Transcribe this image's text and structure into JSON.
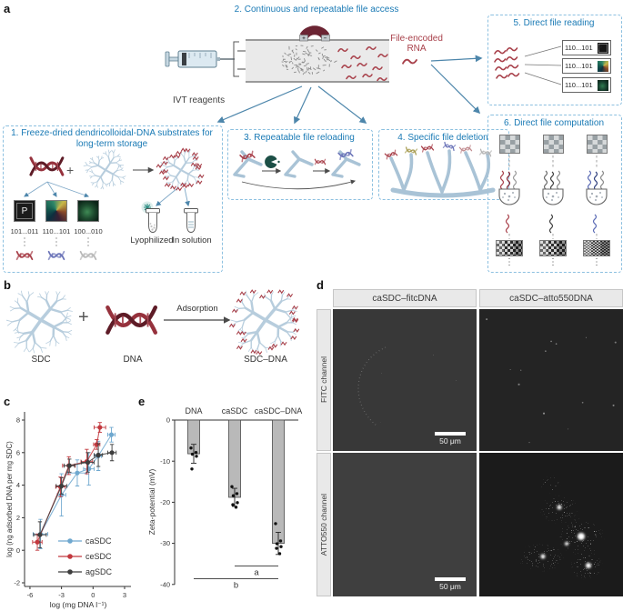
{
  "panels": {
    "a": {
      "label": "a",
      "flow_title": "2. Continuous and repeatable file access",
      "file_encoded_rna": "File-encoded RNA",
      "ivt_reagents": "IVT reagents",
      "box1": {
        "title": "1. Freeze-dried dendricolloidal-DNA substrates for long-term storage",
        "plus": "+",
        "p_label": "P",
        "file_codes": [
          "101...011",
          "110...101",
          "100...010"
        ],
        "lyophilized": "Lyophilized",
        "in_solution": "In solution"
      },
      "box3": {
        "title": "3. Repeatable file reloading"
      },
      "box4": {
        "title": "4. Specific file deletion"
      },
      "box5": {
        "title": "5. Direct file reading",
        "entries": [
          "110...101",
          "110...101",
          "110...101"
        ]
      },
      "box6": {
        "title": "6. Direct file computation",
        "ellipsis": "⋮"
      }
    },
    "b": {
      "label": "b",
      "sdc": "SDC",
      "plus": "+",
      "dna": "DNA",
      "arrow_label": "Adsorption",
      "sdc_dna": "SDC–DNA"
    },
    "c": {
      "label": "c"
    },
    "d": {
      "label": "d",
      "col_headers": [
        "caSDC–fitcDNA",
        "caSDC–atto550DNA"
      ],
      "row_headers": [
        "FITC channel",
        "ATTO550 channel"
      ],
      "scale_bar": "50 μm"
    },
    "e": {
      "label": "e"
    }
  },
  "colors": {
    "accent_blue": "#1a7ab5",
    "dashed_border": "#8cc0e0",
    "arrow_blue": "#4d86ab",
    "rna_red": "#a8404a",
    "dendrimer_blue": "#b7cddd",
    "magnet_maroon": "#6b2433",
    "bar_gray": "#b9b9b9"
  },
  "chart_data": [
    {
      "panel": "c",
      "type": "scatter",
      "title": "",
      "xlabel": "log (mg DNA l⁻¹)",
      "ylabel": "log (ng adsorbed DNA per mg SDC)",
      "xlim": [
        -6.8,
        3.5
      ],
      "ylim": [
        -2.5,
        8.5
      ],
      "xticks": [
        -6,
        -3,
        0,
        3
      ],
      "yticks": [
        -2,
        0,
        2,
        4,
        6,
        8
      ],
      "grid": false,
      "legend_position": "lower-right",
      "series": [
        {
          "name": "caSDC",
          "color": "#6fa8cf",
          "points": [
            {
              "x": -5.0,
              "y": 1.0,
              "xe": 0.7,
              "ye": 0.9
            },
            {
              "x": -3.0,
              "y": 3.4,
              "xe": 0.4,
              "ye": 1.3
            },
            {
              "x": -1.5,
              "y": 4.75,
              "xe": 0.9,
              "ye": 0.8
            },
            {
              "x": -0.4,
              "y": 5.0,
              "xe": 0.5,
              "ye": 1.0
            },
            {
              "x": 0.5,
              "y": 5.8,
              "xe": 0.3,
              "ye": 0.9
            },
            {
              "x": 1.75,
              "y": 7.1,
              "xe": 0.35,
              "ye": 0.45
            }
          ]
        },
        {
          "name": "ceSDC",
          "color": "#c2383e",
          "points": [
            {
              "x": -5.3,
              "y": 0.5,
              "xe": 0.45,
              "ye": 0.5
            },
            {
              "x": -3.1,
              "y": 3.9,
              "xe": 0.45,
              "ye": 0.6
            },
            {
              "x": -2.3,
              "y": 5.2,
              "xe": 0.6,
              "ye": 0.55
            },
            {
              "x": -0.6,
              "y": 5.45,
              "xe": 0.55,
              "ye": 0.75
            },
            {
              "x": 0.35,
              "y": 6.5,
              "xe": 0.3,
              "ye": 0.3
            },
            {
              "x": 0.65,
              "y": 7.55,
              "xe": 0.55,
              "ye": 0.3
            }
          ]
        },
        {
          "name": "agSDC",
          "color": "#3d3d3d",
          "points": [
            {
              "x": -5.05,
              "y": 0.95,
              "xe": 0.6,
              "ye": 0.8
            },
            {
              "x": -3.0,
              "y": 3.95,
              "xe": 0.5,
              "ye": 0.5
            },
            {
              "x": -2.25,
              "y": 5.2,
              "xe": 0.5,
              "ye": 0.4
            },
            {
              "x": -0.5,
              "y": 5.4,
              "xe": 0.6,
              "ye": 0.6
            },
            {
              "x": 0.5,
              "y": 5.85,
              "xe": 0.4,
              "ye": 0.7
            },
            {
              "x": 1.8,
              "y": 6.0,
              "xe": 0.4,
              "ye": 0.5
            }
          ]
        }
      ]
    },
    {
      "panel": "e",
      "type": "bar",
      "ylabel": "Zeta-potential (mV)",
      "ylim": [
        -40,
        0
      ],
      "yticks": [
        0,
        -10,
        -20,
        -30,
        -40
      ],
      "categories": [
        "DNA",
        "caSDC",
        "caSDC–DNA"
      ],
      "values": [
        -8.2,
        -18.8,
        -30.0
      ],
      "errors": [
        2.3,
        2.2,
        2.7
      ],
      "bar_color": "#b9b9b9",
      "scatter_points": [
        [
          -6.8,
          -7.9,
          -8.3,
          -8.8,
          -11.9
        ],
        [
          -16.2,
          -17.9,
          -18.4,
          -20.1,
          -20.6,
          -21.2
        ],
        [
          -25.2,
          -29.4,
          -30.1,
          -30.8,
          -31.2,
          -32.5
        ]
      ],
      "significance": [
        {
          "label": "a",
          "from": "caSDC",
          "to": "caSDC–DNA",
          "y": -35.5
        },
        {
          "label": "b",
          "from": "DNA",
          "to": "caSDC–DNA",
          "y": -38.6
        }
      ]
    }
  ]
}
